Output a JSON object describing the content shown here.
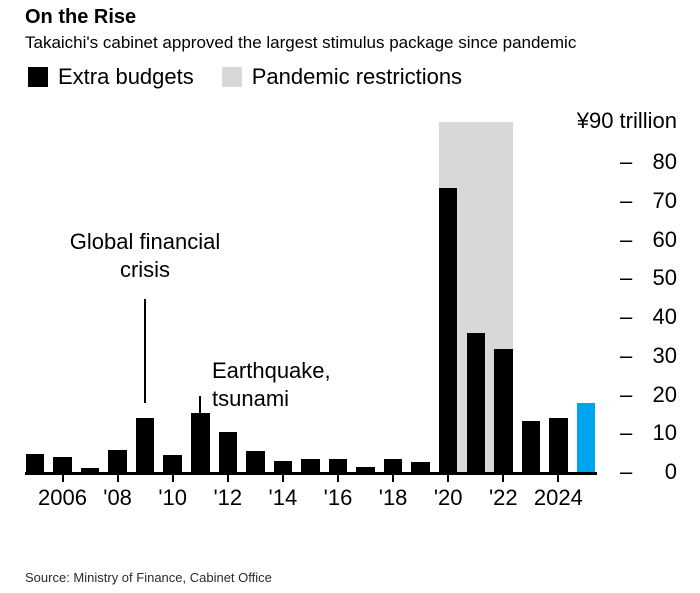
{
  "header": {
    "title": "On the Rise",
    "subtitle": "Takaichi's cabinet approved the largest stimulus package since pandemic"
  },
  "legend": {
    "items": [
      {
        "label": "Extra budgets",
        "color": "#000000"
      },
      {
        "label": "Pandemic restrictions",
        "color": "#d8d8d8"
      }
    ]
  },
  "colors": {
    "bar": "#000000",
    "highlight_bar": "#00a5f0",
    "band": "#d8d8d8",
    "axis": "#000000"
  },
  "chart_data": {
    "type": "bar",
    "title": "On the Rise",
    "subtitle": "Takaichi's cabinet approved the largest stimulus package since pandemic",
    "series_name": "Extra budgets",
    "unit_label": "¥90 trillion",
    "ylabel": "trillion yen",
    "ylim": [
      0,
      90
    ],
    "y_ticks": [
      0,
      10,
      20,
      30,
      40,
      50,
      60,
      70,
      80
    ],
    "grid": false,
    "legend_position": "top",
    "x": [
      2005,
      2006,
      2007,
      2008,
      2009,
      2010,
      2011,
      2012,
      2013,
      2014,
      2015,
      2016,
      2017,
      2018,
      2019,
      2020,
      2021,
      2022,
      2023,
      2024,
      2025
    ],
    "values": [
      4.6,
      3.8,
      1.0,
      5.8,
      14.0,
      4.4,
      15.2,
      10.2,
      5.5,
      2.9,
      3.3,
      3.4,
      1.4,
      3.4,
      2.7,
      73.4,
      36.0,
      31.7,
      13.2,
      13.9,
      17.7
    ],
    "highlight_year": 2025,
    "band": {
      "name": "Pandemic restrictions",
      "from_year": 2020,
      "to_year": 2022
    },
    "x_tick_labels": [
      {
        "year": 2006,
        "label": "2006"
      },
      {
        "year": 2008,
        "label": "'08"
      },
      {
        "year": 2010,
        "label": "'10"
      },
      {
        "year": 2012,
        "label": "'12"
      },
      {
        "year": 2014,
        "label": "'14"
      },
      {
        "year": 2016,
        "label": "'16"
      },
      {
        "year": 2018,
        "label": "'18"
      },
      {
        "year": 2020,
        "label": "'20"
      },
      {
        "year": 2022,
        "label": "'22"
      },
      {
        "year": 2024,
        "label": "2024"
      }
    ],
    "annotations": [
      {
        "id": "gfc",
        "text": "Global financial\ncrisis",
        "target_year": 2009
      },
      {
        "id": "quake",
        "text": "Earthquake,\ntsunami",
        "target_year": 2011
      }
    ]
  },
  "source": "Source: Ministry of Finance, Cabinet Office"
}
